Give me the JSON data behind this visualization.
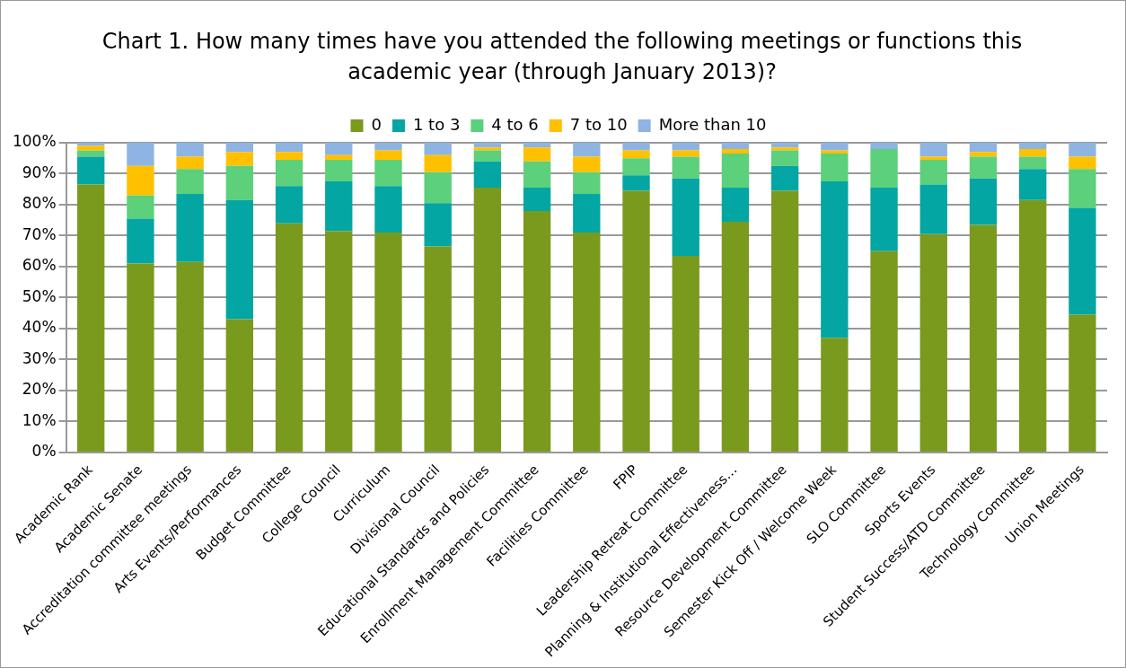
{
  "chart_data": {
    "type": "bar",
    "stacked": true,
    "title": "Chart 1. How many times have you attended the following meetings or functions this academic year (through January 2013)?",
    "categories": [
      "Academic Rank",
      "Academic Senate",
      "Accreditation committee meetings",
      "Arts Events/Performances",
      "Budget Committee",
      "College Council",
      "Curriculum",
      "Divisional Council",
      "Educational Standards and Policies",
      "Enrollment Management Committee",
      "Facilities Committee",
      "FPIP",
      "Leadership Retreat Committee",
      "Planning & Institutional Effectiveness…",
      "Resource Development Committee",
      "Semester Kick Off / Welcome Week",
      "SLO Committee",
      "Sports Events",
      "Student Success/ATD Committee",
      "Technology Committee",
      "Union Meetings"
    ],
    "series": [
      {
        "name": "0",
        "color": "#7a9a1e",
        "values": [
          86.5,
          61,
          61.5,
          43,
          74,
          71.5,
          71,
          66.5,
          85.5,
          78,
          71,
          84.5,
          63.5,
          74.5,
          84.5,
          37,
          65,
          70.5,
          73.5,
          81.5,
          44.5
        ]
      },
      {
        "name": "1 to 3",
        "color": "#03a6a2",
        "values": [
          9,
          14.5,
          22,
          38.5,
          12,
          16,
          15,
          14,
          8.5,
          7.5,
          12.5,
          5,
          25,
          11,
          8,
          50.5,
          20.5,
          16,
          15,
          10,
          34.5
        ]
      },
      {
        "name": "4 to 6",
        "color": "#5cd07a",
        "values": [
          2,
          7.5,
          8,
          11,
          8.5,
          7,
          8.5,
          10,
          3.5,
          8.5,
          7,
          5.5,
          7,
          11,
          5,
          9,
          12.5,
          8,
          7,
          4,
          12.5
        ]
      },
      {
        "name": "7 to 10",
        "color": "#ffc000",
        "values": [
          1.5,
          9.5,
          4,
          4.5,
          2.5,
          1.5,
          3,
          5.5,
          1,
          4.5,
          5,
          2.5,
          2,
          1.5,
          1,
          1,
          0,
          1,
          1.5,
          2.5,
          4
        ]
      },
      {
        "name": "More than 10",
        "color": "#8db4e2",
        "values": [
          1,
          7.5,
          4.5,
          3,
          3,
          4,
          2.5,
          4,
          1.5,
          1.5,
          4.5,
          2.5,
          2.5,
          2,
          1.5,
          2.5,
          2,
          4.5,
          3,
          2,
          4.5
        ]
      }
    ],
    "ylim": [
      0,
      100
    ],
    "yticks": [
      {
        "value": 0,
        "label": "0%"
      },
      {
        "value": 10,
        "label": "10%"
      },
      {
        "value": 20,
        "label": "20%"
      },
      {
        "value": 30,
        "label": "30%"
      },
      {
        "value": 40,
        "label": "40%"
      },
      {
        "value": 50,
        "label": "50%"
      },
      {
        "value": 60,
        "label": "60%"
      },
      {
        "value": 70,
        "label": "70%"
      },
      {
        "value": 80,
        "label": "80%"
      },
      {
        "value": 90,
        "label": "90%"
      },
      {
        "value": 100,
        "label": "100%"
      }
    ],
    "grid": "y",
    "legend": "top"
  }
}
